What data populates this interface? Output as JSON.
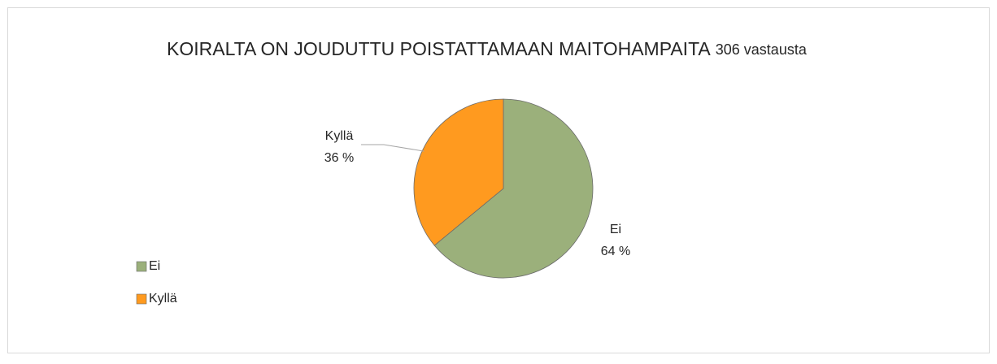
{
  "chart_data": {
    "type": "pie",
    "title": "KOIRALTA ON JOUDUTTU POISTATTAMAAN MAITOHAMPAITA",
    "subtitle": "306 vastausta",
    "categories": [
      "Ei",
      "Kyllä"
    ],
    "values": [
      64,
      36
    ],
    "value_labels": [
      "64 %",
      "36 %"
    ],
    "colors": [
      "#9bb07b",
      "#ff9a1f"
    ],
    "legend": "left"
  }
}
